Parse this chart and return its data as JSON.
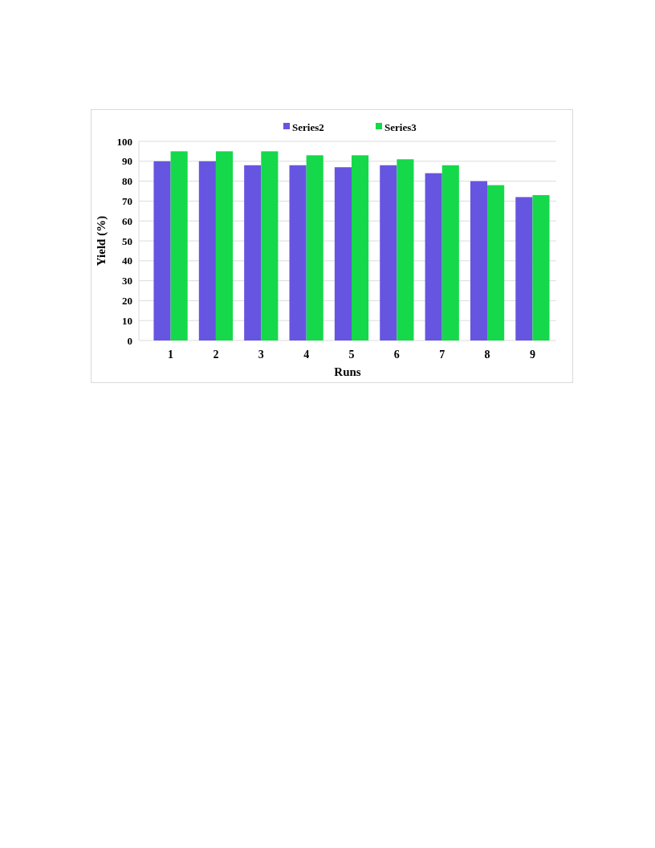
{
  "chart_data": {
    "type": "bar",
    "xlabel": "Runs",
    "ylabel": "Yield (%)",
    "categories": [
      "1",
      "2",
      "3",
      "4",
      "5",
      "6",
      "7",
      "8",
      "9"
    ],
    "series": [
      {
        "name": "Series2",
        "color": "#6655e0",
        "values": [
          90,
          90,
          88,
          88,
          87,
          88,
          84,
          80,
          72
        ]
      },
      {
        "name": "Series3",
        "color": "#15d94a",
        "values": [
          95,
          95,
          95,
          93,
          93,
          91,
          88,
          78,
          73
        ]
      }
    ],
    "ylim": [
      0,
      100
    ],
    "yticks": [
      0,
      10,
      20,
      30,
      40,
      50,
      60,
      70,
      80,
      90,
      100
    ],
    "grid": "y",
    "legend": "top"
  }
}
